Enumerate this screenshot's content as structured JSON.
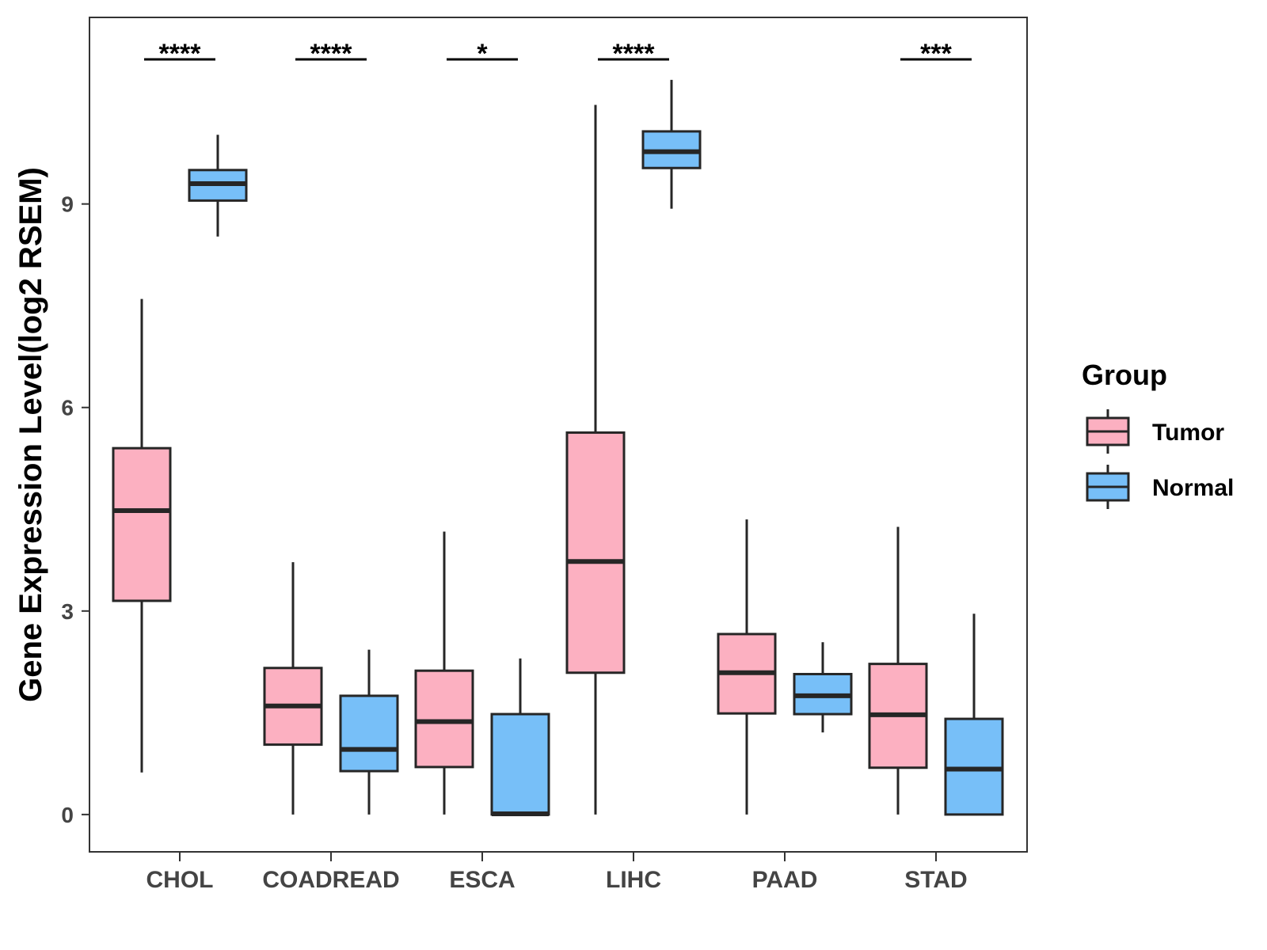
{
  "chart_data": {
    "type": "box",
    "title": "",
    "xlabel": "",
    "ylabel": "Gene Expression Level(log2 RSEM)",
    "ylim": [
      -0.55,
      11.75
    ],
    "yticks": [
      0,
      3,
      6,
      9
    ],
    "categories": [
      "CHOL",
      "COADREAD",
      "ESCA",
      "LIHC",
      "PAAD",
      "STAD"
    ],
    "legend": {
      "title": "Group",
      "position": "right"
    },
    "series": [
      {
        "name": "Tumor",
        "color": "#FCB0C1",
        "boxes": [
          {
            "min": 0.62,
            "q1": 3.15,
            "median": 4.48,
            "q3": 5.4,
            "max": 7.6
          },
          {
            "min": 0.0,
            "q1": 1.03,
            "median": 1.6,
            "q3": 2.16,
            "max": 3.72
          },
          {
            "min": 0.0,
            "q1": 0.7,
            "median": 1.37,
            "q3": 2.12,
            "max": 4.17
          },
          {
            "min": 0.0,
            "q1": 2.09,
            "median": 3.73,
            "q3": 5.63,
            "max": 10.46
          },
          {
            "min": 0.0,
            "q1": 1.49,
            "median": 2.09,
            "q3": 2.66,
            "max": 4.35
          },
          {
            "min": 0.0,
            "q1": 0.69,
            "median": 1.47,
            "q3": 2.22,
            "max": 4.24
          }
        ]
      },
      {
        "name": "Normal",
        "color": "#77BFF8",
        "boxes": [
          {
            "min": 8.52,
            "q1": 9.05,
            "median": 9.3,
            "q3": 9.5,
            "max": 10.02
          },
          {
            "min": 0.0,
            "q1": 0.64,
            "median": 0.96,
            "q3": 1.75,
            "max": 2.43
          },
          {
            "min": 0.0,
            "q1": 0.0,
            "median": 0.01,
            "q3": 1.48,
            "max": 2.3
          },
          {
            "min": 8.93,
            "q1": 9.53,
            "median": 9.77,
            "q3": 10.07,
            "max": 10.83
          },
          {
            "min": 1.21,
            "q1": 1.48,
            "median": 1.75,
            "q3": 2.07,
            "max": 2.54
          },
          {
            "min": 0.0,
            "q1": 0.0,
            "median": 0.67,
            "q3": 1.41,
            "max": 2.96
          }
        ]
      }
    ],
    "significance": [
      "****",
      "****",
      "*",
      "****",
      "",
      "***"
    ]
  },
  "colors": {
    "tumor": "#FCB0C1",
    "normal": "#77BFF8",
    "outline": "#262626",
    "axis": "#333333",
    "tick_text": "#444444"
  }
}
